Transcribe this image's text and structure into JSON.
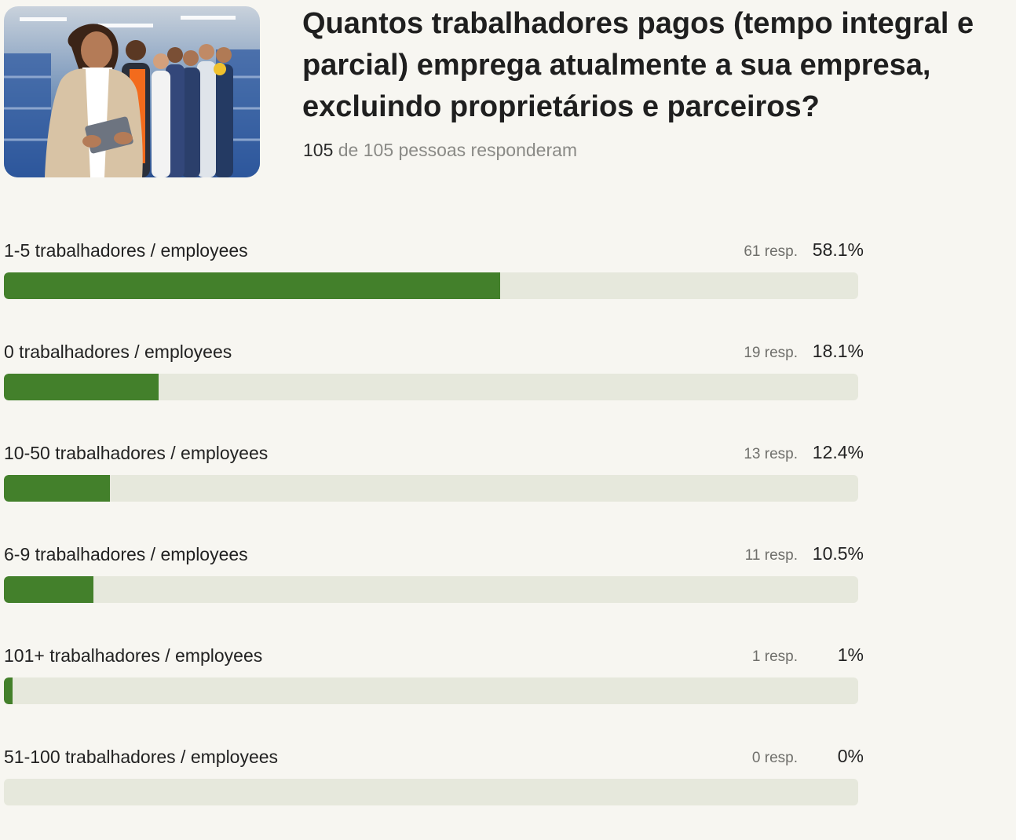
{
  "question": "Quantos trabalhadores pagos (tempo integral e parcial) emprega atualmente a sua empresa, excluindo proprietários e parceiros?",
  "respondents": {
    "count": "105",
    "rest": " de 105 pessoas responderam"
  },
  "photo": {
    "icon": "team-photo"
  },
  "colors": {
    "bar_fill": "#43802b",
    "bar_track": "#e6e8dc",
    "background": "#f7f6f1"
  },
  "chart_data": {
    "type": "bar",
    "orientation": "horizontal",
    "categories": [
      "1-5 trabalhadores / employees",
      "0 trabalhadores / employees",
      "10-50 trabalhadores / employees",
      "6-9 trabalhadores / employees",
      "101+ trabalhadores / employees",
      "51-100 trabalhadores / employees"
    ],
    "responses": [
      61,
      19,
      13,
      11,
      1,
      0
    ],
    "values": [
      58.1,
      18.1,
      12.4,
      10.5,
      1,
      0
    ],
    "response_labels": [
      "61 resp.",
      "19 resp.",
      "13 resp.",
      "11 resp.",
      "1 resp.",
      "0 resp."
    ],
    "percent_labels": [
      "58.1%",
      "18.1%",
      "12.4%",
      "10.5%",
      "1%",
      "0%"
    ],
    "xlim": [
      0,
      100
    ]
  }
}
